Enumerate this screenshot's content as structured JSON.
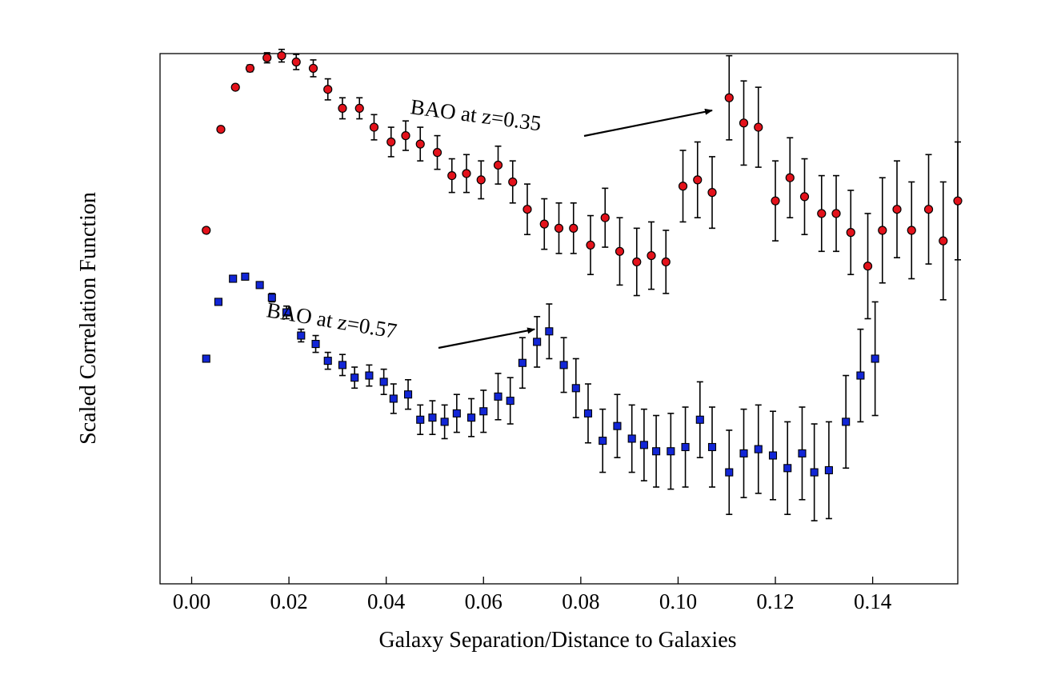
{
  "chart_data": {
    "type": "scatter",
    "title": "",
    "xlabel": "Galaxy Separation/Distance to Galaxies",
    "ylabel": "Scaled Correlation Function",
    "xlim": [
      -0.0065,
      0.1575
    ],
    "ylim": [
      -1.5,
      11.1
    ],
    "x_ticks": [
      0.0,
      0.02,
      0.04,
      0.06,
      0.08,
      0.1,
      0.12,
      0.14
    ],
    "x_tick_labels": [
      "0.00",
      "0.02",
      "0.04",
      "0.06",
      "0.08",
      "0.10",
      "0.12",
      "0.14"
    ],
    "y_tick_labels_shown": false,
    "grid": false,
    "series": [
      {
        "marker": "circle",
        "color": "#e3121b",
        "points": [
          [
            0.003,
            6.9,
            0.0
          ],
          [
            0.006,
            9.3,
            0.0
          ],
          [
            0.009,
            10.3,
            0.0
          ],
          [
            0.012,
            10.75,
            0.08
          ],
          [
            0.0155,
            11.0,
            0.12
          ],
          [
            0.0185,
            11.05,
            0.15
          ],
          [
            0.0215,
            10.9,
            0.18
          ],
          [
            0.025,
            10.75,
            0.2
          ],
          [
            0.028,
            10.25,
            0.25
          ],
          [
            0.031,
            9.8,
            0.25
          ],
          [
            0.0345,
            9.8,
            0.25
          ],
          [
            0.0375,
            9.35,
            0.3
          ],
          [
            0.041,
            9.0,
            0.35
          ],
          [
            0.044,
            9.15,
            0.35
          ],
          [
            0.047,
            8.95,
            0.4
          ],
          [
            0.0505,
            8.75,
            0.4
          ],
          [
            0.0535,
            8.2,
            0.4
          ],
          [
            0.0565,
            8.25,
            0.45
          ],
          [
            0.0595,
            8.1,
            0.45
          ],
          [
            0.063,
            8.45,
            0.45
          ],
          [
            0.066,
            8.05,
            0.5
          ],
          [
            0.069,
            7.4,
            0.6
          ],
          [
            0.0725,
            7.05,
            0.6
          ],
          [
            0.0755,
            6.95,
            0.6
          ],
          [
            0.0785,
            6.95,
            0.6
          ],
          [
            0.082,
            6.55,
            0.7
          ],
          [
            0.085,
            7.2,
            0.7
          ],
          [
            0.088,
            6.4,
            0.8
          ],
          [
            0.0915,
            6.15,
            0.8
          ],
          [
            0.0945,
            6.3,
            0.8
          ],
          [
            0.0975,
            6.15,
            0.75
          ],
          [
            0.101,
            7.95,
            0.85
          ],
          [
            0.104,
            8.1,
            0.9
          ],
          [
            0.107,
            7.8,
            0.85
          ],
          [
            0.1105,
            10.05,
            1.0
          ],
          [
            0.1135,
            9.45,
            1.0
          ],
          [
            0.1165,
            9.35,
            0.95
          ],
          [
            0.12,
            7.6,
            0.95
          ],
          [
            0.123,
            8.15,
            0.95
          ],
          [
            0.126,
            7.7,
            0.9
          ],
          [
            0.1295,
            7.3,
            0.9
          ],
          [
            0.1325,
            7.3,
            0.9
          ],
          [
            0.1355,
            6.85,
            1.0
          ],
          [
            0.139,
            6.05,
            1.25
          ],
          [
            0.142,
            6.9,
            1.25
          ],
          [
            0.145,
            7.4,
            1.15
          ],
          [
            0.148,
            6.9,
            1.15
          ],
          [
            0.1515,
            7.4,
            1.3
          ],
          [
            0.1545,
            6.65,
            1.4
          ],
          [
            0.1575,
            7.6,
            1.4
          ]
        ]
      },
      {
        "marker": "square",
        "color": "#1226d6",
        "points": [
          [
            0.003,
            3.85,
            0.0
          ],
          [
            0.0055,
            5.2,
            0.0
          ],
          [
            0.0085,
            5.75,
            0.05
          ],
          [
            0.011,
            5.8,
            0.05
          ],
          [
            0.014,
            5.6,
            0.07
          ],
          [
            0.0165,
            5.3,
            0.1
          ],
          [
            0.0195,
            4.95,
            0.15
          ],
          [
            0.0225,
            4.4,
            0.15
          ],
          [
            0.0255,
            4.2,
            0.2
          ],
          [
            0.028,
            3.8,
            0.2
          ],
          [
            0.031,
            3.7,
            0.25
          ],
          [
            0.0335,
            3.4,
            0.25
          ],
          [
            0.0365,
            3.45,
            0.25
          ],
          [
            0.0395,
            3.3,
            0.3
          ],
          [
            0.0415,
            2.9,
            0.35
          ],
          [
            0.0445,
            3.0,
            0.35
          ],
          [
            0.047,
            2.4,
            0.35
          ],
          [
            0.0495,
            2.45,
            0.4
          ],
          [
            0.052,
            2.35,
            0.4
          ],
          [
            0.0545,
            2.55,
            0.45
          ],
          [
            0.0575,
            2.45,
            0.45
          ],
          [
            0.06,
            2.6,
            0.5
          ],
          [
            0.063,
            2.95,
            0.55
          ],
          [
            0.0655,
            2.85,
            0.55
          ],
          [
            0.068,
            3.75,
            0.6
          ],
          [
            0.071,
            4.25,
            0.6
          ],
          [
            0.0735,
            4.5,
            0.65
          ],
          [
            0.0765,
            3.7,
            0.65
          ],
          [
            0.079,
            3.15,
            0.7
          ],
          [
            0.0815,
            2.55,
            0.7
          ],
          [
            0.0845,
            1.9,
            0.75
          ],
          [
            0.0875,
            2.25,
            0.75
          ],
          [
            0.0905,
            1.95,
            0.8
          ],
          [
            0.093,
            1.8,
            0.85
          ],
          [
            0.0955,
            1.65,
            0.85
          ],
          [
            0.0985,
            1.65,
            0.9
          ],
          [
            0.1015,
            1.75,
            0.95
          ],
          [
            0.1045,
            2.4,
            0.9
          ],
          [
            0.107,
            1.75,
            0.95
          ],
          [
            0.1105,
            1.15,
            1.0
          ],
          [
            0.1135,
            1.6,
            1.05
          ],
          [
            0.1165,
            1.7,
            1.05
          ],
          [
            0.1195,
            1.55,
            1.05
          ],
          [
            0.1225,
            1.25,
            1.1
          ],
          [
            0.1255,
            1.6,
            1.1
          ],
          [
            0.128,
            1.15,
            1.15
          ],
          [
            0.131,
            1.2,
            1.15
          ],
          [
            0.1345,
            2.35,
            1.1
          ],
          [
            0.1375,
            3.45,
            1.1
          ],
          [
            0.1405,
            3.85,
            1.35
          ]
        ]
      }
    ],
    "annotations": [
      {
        "text": "BAO at z=0.35",
        "arrow_to": [
          0.107,
          9.75
        ]
      },
      {
        "text": "BAO at z=0.57",
        "arrow_to": [
          0.0705,
          4.55
        ]
      }
    ]
  }
}
